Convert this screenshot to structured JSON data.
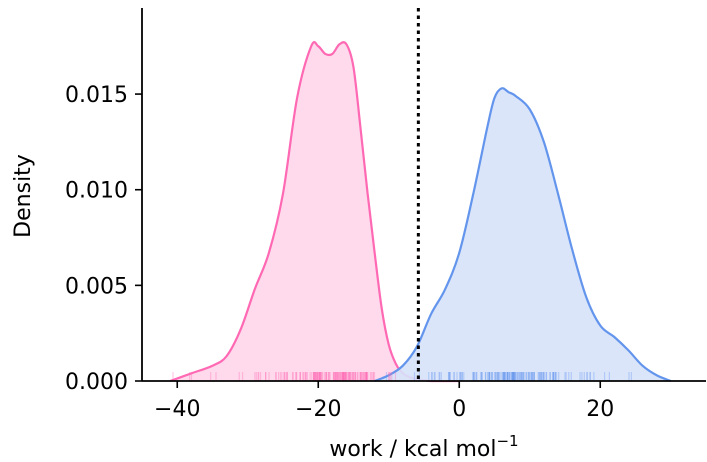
{
  "chart_data": {
    "type": "area",
    "title": "",
    "xlabel": "work / kcal mol",
    "xlabel_superscript": "−1",
    "ylabel": "Density",
    "xlim": [
      -45,
      35
    ],
    "ylim": [
      0,
      0.0195
    ],
    "x_ticks": [
      {
        "value": -40,
        "label": "−40"
      },
      {
        "value": -20,
        "label": "−20"
      },
      {
        "value": 0,
        "label": "0"
      },
      {
        "value": 20,
        "label": "20"
      }
    ],
    "y_ticks": [
      {
        "value": 0.0,
        "label": "0.000"
      },
      {
        "value": 0.005,
        "label": "0.005"
      },
      {
        "value": 0.01,
        "label": "0.010"
      },
      {
        "value": 0.015,
        "label": "0.015"
      }
    ],
    "grid": false,
    "legend": "none",
    "vline": {
      "x": -5.8,
      "style": "dotted",
      "color": "#000000"
    },
    "series": [
      {
        "color": "#ff69b4",
        "fill": "#ffd6ea",
        "x": [
          -41,
          -38,
          -35,
          -33,
          -31,
          -29,
          -27,
          -25,
          -23,
          -21,
          -20,
          -19,
          -18,
          -17,
          -16,
          -15,
          -14,
          -13,
          -12,
          -11,
          -10,
          -9,
          -8,
          -7,
          -6,
          -4,
          -2,
          0
        ],
        "y": [
          0.0,
          0.0004,
          0.0008,
          0.0013,
          0.0027,
          0.0048,
          0.0067,
          0.0098,
          0.0148,
          0.0175,
          0.0175,
          0.0171,
          0.0171,
          0.0176,
          0.0176,
          0.0164,
          0.0132,
          0.0098,
          0.0067,
          0.0038,
          0.0019,
          0.0009,
          0.0004,
          0.0002,
          0.0001,
          0.0,
          0.0,
          0.0
        ]
      },
      {
        "color": "#6495ed",
        "fill": "#d6e2fa",
        "x": [
          -12,
          -10,
          -8,
          -6,
          -4,
          -2,
          0,
          2,
          4,
          5,
          6,
          7,
          8,
          10,
          12,
          14,
          16,
          18,
          20,
          22,
          24,
          26,
          28,
          30
        ],
        "y": [
          0.0,
          0.0003,
          0.0008,
          0.0018,
          0.0035,
          0.0048,
          0.0067,
          0.0098,
          0.0133,
          0.0148,
          0.0153,
          0.0151,
          0.0149,
          0.0142,
          0.0125,
          0.0098,
          0.0069,
          0.0044,
          0.0029,
          0.0023,
          0.0016,
          0.0008,
          0.0003,
          0.0
        ]
      }
    ]
  }
}
